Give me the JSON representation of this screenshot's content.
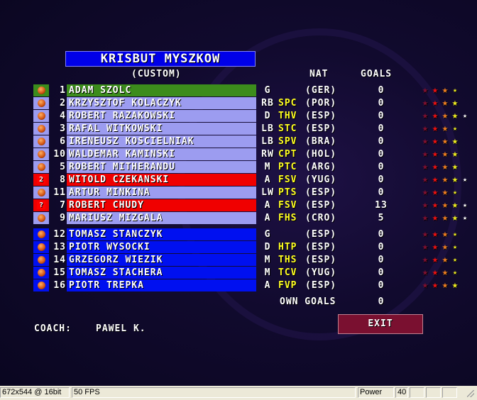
{
  "team": {
    "name": "KRISBUT MYSZKOW",
    "type": "(CUSTOM)"
  },
  "headers": {
    "nat": "NAT",
    "goals": "GOALS"
  },
  "colors": {
    "starter": "#9c9cf0",
    "keeper": "#3c8c1c",
    "red": "#f00000",
    "reserve": "#0010f0"
  },
  "players": [
    {
      "num": "1",
      "name": "ADAM SZOLC",
      "pos": "G",
      "club": "",
      "nat": "(GER)",
      "goals": "0",
      "rating": 3.5,
      "row": "keeper",
      "icon": "ball-icon"
    },
    {
      "num": "2",
      "name": "KRZYSZTOF KOLACZYK",
      "pos": "RB",
      "club": "SPC",
      "nat": "(POR)",
      "goals": "0",
      "rating": 4,
      "row": "starter",
      "icon": "ball-icon"
    },
    {
      "num": "4",
      "name": "ROBERT RAZAKOWSKI",
      "pos": "D",
      "club": "THV",
      "nat": "(ESP)",
      "goals": "0",
      "rating": 4.5,
      "row": "starter",
      "icon": "ball-icon"
    },
    {
      "num": "3",
      "name": "RAFAL WITKOWSKI",
      "pos": "LB",
      "club": "STC",
      "nat": "(ESP)",
      "goals": "0",
      "rating": 3.5,
      "row": "starter",
      "icon": "ball-icon"
    },
    {
      "num": "6",
      "name": "IRENEUSZ KOSCIELNIAK",
      "pos": "LB",
      "club": "SPV",
      "nat": "(BRA)",
      "goals": "0",
      "rating": 4,
      "row": "starter",
      "icon": "ball-icon"
    },
    {
      "num": "10",
      "name": "WALDEMAR KAMINSKI",
      "pos": "RW",
      "club": "CPT",
      "nat": "(HOL)",
      "goals": "0",
      "rating": 4,
      "row": "starter",
      "icon": "ball-icon"
    },
    {
      "num": "5",
      "name": "ROBERT MITHERANDU",
      "pos": "M",
      "club": "PTC",
      "nat": "(ARG)",
      "goals": "0",
      "rating": 4,
      "row": "starter",
      "icon": "ball-icon"
    },
    {
      "num": "8",
      "name": "WITOLD CZEKANSKI",
      "pos": "A",
      "club": "FSV",
      "nat": "(YUG)",
      "goals": "0",
      "rating": 4.5,
      "row": "red",
      "icon": "injury-icon",
      "badge": "2"
    },
    {
      "num": "11",
      "name": "ARTUR MINKINA",
      "pos": "LW",
      "club": "PTS",
      "nat": "(ESP)",
      "goals": "0",
      "rating": 3.5,
      "row": "starter",
      "icon": "ball-icon"
    },
    {
      "num": "7",
      "name": "ROBERT CHUDY",
      "pos": "A",
      "club": "FSV",
      "nat": "(ESP)",
      "goals": "13",
      "rating": 4.5,
      "row": "red",
      "icon": "injury-icon",
      "badge": "?"
    },
    {
      "num": "9",
      "name": "MARIUSZ MIZGALA",
      "pos": "A",
      "club": "FHS",
      "nat": "(CRO)",
      "goals": "5",
      "rating": 4.5,
      "row": "starter",
      "icon": "ball-icon"
    },
    {
      "num": "12",
      "name": "TOMASZ STANCZYK",
      "pos": "G",
      "club": "",
      "nat": "(ESP)",
      "goals": "0",
      "rating": 3.5,
      "row": "reserve",
      "icon": "ball-icon"
    },
    {
      "num": "13",
      "name": "PIOTR WYSOCKI",
      "pos": "D",
      "club": "HTP",
      "nat": "(ESP)",
      "goals": "0",
      "rating": 3.5,
      "row": "reserve",
      "icon": "ball-icon"
    },
    {
      "num": "14",
      "name": "GRZEGORZ WIEZIK",
      "pos": "M",
      "club": "THS",
      "nat": "(ESP)",
      "goals": "0",
      "rating": 3.5,
      "row": "reserve",
      "icon": "ball-icon"
    },
    {
      "num": "15",
      "name": "TOMASZ STACHERA",
      "pos": "M",
      "club": "TCV",
      "nat": "(YUG)",
      "goals": "0",
      "rating": 3.5,
      "row": "reserve",
      "icon": "ball-icon"
    },
    {
      "num": "16",
      "name": "PIOTR TREPKA",
      "pos": "A",
      "club": "FVP",
      "nat": "(ESP)",
      "goals": "0",
      "rating": 4,
      "row": "reserve",
      "icon": "ball-icon"
    }
  ],
  "own_goals": {
    "label": "OWN GOALS",
    "value": "0"
  },
  "coach": {
    "label": "COACH:",
    "name": "PAWEL K."
  },
  "exit_label": "EXIT",
  "statusbar": {
    "resolution": "672x544 @ 16bit",
    "fps": "50 FPS",
    "power_label": "Power",
    "power_value": "40"
  }
}
